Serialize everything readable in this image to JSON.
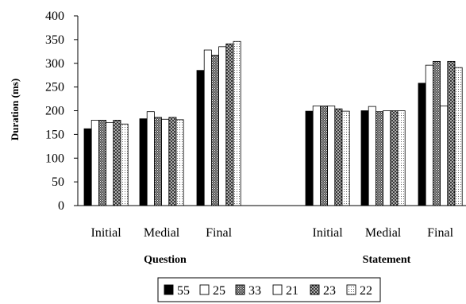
{
  "chart_data": {
    "type": "bar",
    "ylabel": "Duration (ms)",
    "ylim": [
      0,
      400
    ],
    "yticks": [
      0,
      50,
      100,
      150,
      200,
      250,
      300,
      350,
      400
    ],
    "grid": false,
    "legend_position": "bottom-center",
    "groups": [
      {
        "label": "Question",
        "categories": [
          "Initial",
          "Medial",
          "Final"
        ]
      },
      {
        "label": "Statement",
        "categories": [
          "Initial",
          "Medial",
          "Final"
        ]
      }
    ],
    "series": [
      {
        "name": "55",
        "pattern": "solid-black",
        "values": [
          162,
          183,
          285,
          199,
          200,
          258
        ]
      },
      {
        "name": "25",
        "pattern": "white",
        "values": [
          180,
          198,
          328,
          210,
          209,
          296
        ]
      },
      {
        "name": "33",
        "pattern": "dense-hatch",
        "values": [
          180,
          186,
          317,
          210,
          198,
          304
        ]
      },
      {
        "name": "21",
        "pattern": "white",
        "values": [
          175,
          182,
          335,
          210,
          200,
          210
        ]
      },
      {
        "name": "23",
        "pattern": "crosshatch-dark",
        "values": [
          180,
          186,
          341,
          204,
          200,
          304
        ]
      },
      {
        "name": "22",
        "pattern": "dotted",
        "values": [
          172,
          181,
          346,
          199,
          200,
          291
        ]
      }
    ]
  }
}
